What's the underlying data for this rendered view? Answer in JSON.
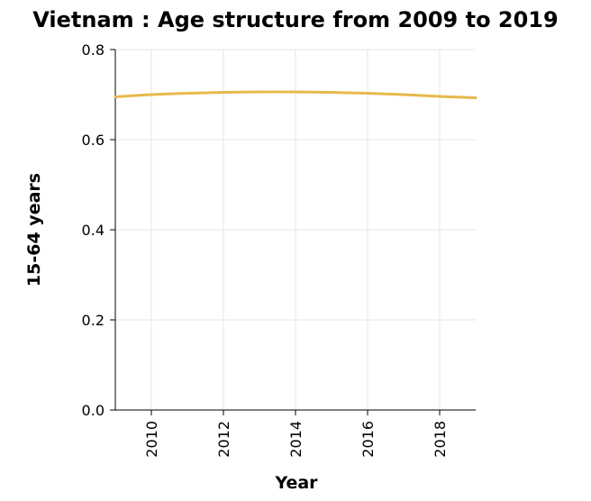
{
  "chart_data": {
    "type": "line",
    "title": "Vietnam : Age structure from 2009 to 2019",
    "xlabel": "Year",
    "ylabel": "15-64 years",
    "xlim": [
      2009,
      2019
    ],
    "ylim": [
      0,
      0.8
    ],
    "xticks": [
      2010,
      2012,
      2014,
      2016,
      2018
    ],
    "yticks": [
      0.0,
      0.2,
      0.4,
      0.6,
      0.8
    ],
    "ytick_labels": [
      "0.0",
      "0.2",
      "0.4",
      "0.6",
      "0.8"
    ],
    "grid": true,
    "series": [
      {
        "color": "#e8b84a",
        "x": [
          2009,
          2010,
          2011,
          2012,
          2013,
          2014,
          2015,
          2016,
          2017,
          2018,
          2019
        ],
        "y": [
          0.695,
          0.7,
          0.703,
          0.705,
          0.706,
          0.706,
          0.705,
          0.703,
          0.7,
          0.696,
          0.693
        ]
      }
    ]
  }
}
